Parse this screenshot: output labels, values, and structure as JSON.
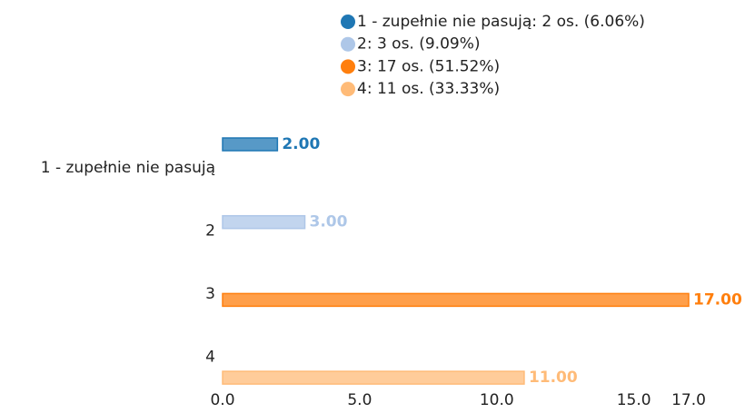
{
  "chart_data": {
    "type": "bar",
    "orientation": "horizontal",
    "categories": [
      "1 - zupełnie nie pasują",
      "2",
      "3",
      "4"
    ],
    "values": [
      2,
      3,
      17,
      11
    ],
    "value_labels": [
      "2.00",
      "3.00",
      "17.00",
      "11.00"
    ],
    "colors": [
      "#1f77b4",
      "#aec7e8",
      "#ff7f0e",
      "#ffbb78"
    ],
    "legend": [
      "1 - zupełnie nie pasują: 2 os. (6.06%)",
      "2: 3 os. (9.09%)",
      "3: 17 os. (51.52%)",
      "4: 11 os. (33.33%)"
    ],
    "xlim": [
      0,
      17
    ],
    "xticks": [
      {
        "value": 0,
        "label": "0.0"
      },
      {
        "value": 5,
        "label": "5.0"
      },
      {
        "value": 10,
        "label": "10.0"
      },
      {
        "value": 15,
        "label": "15.0"
      },
      {
        "value": 17,
        "label": "17.0"
      }
    ]
  }
}
